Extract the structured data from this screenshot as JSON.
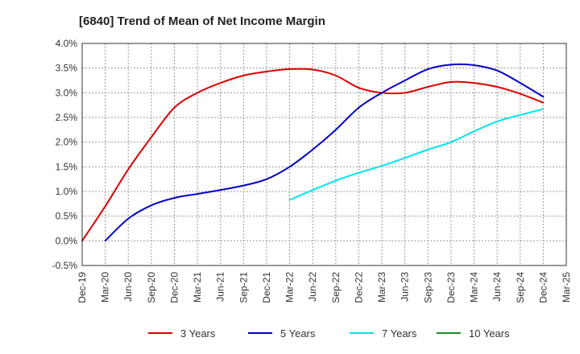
{
  "chart_data": {
    "type": "line",
    "title": "[6840]  Trend of Mean of Net Income Margin",
    "xlabel": "",
    "ylabel": "",
    "x_categories": [
      "Dec-19",
      "Mar-20",
      "Jun-20",
      "Sep-20",
      "Dec-20",
      "Mar-21",
      "Jun-21",
      "Sep-21",
      "Dec-21",
      "Mar-22",
      "Jun-22",
      "Sep-22",
      "Dec-22",
      "Mar-23",
      "Jun-23",
      "Sep-23",
      "Dec-23",
      "Mar-24",
      "Jun-24",
      "Sep-24",
      "Dec-24",
      "Mar-25"
    ],
    "y_ticks": [
      {
        "value": 4.0,
        "label": "4.0%"
      },
      {
        "value": 3.5,
        "label": "3.5%"
      },
      {
        "value": 3.0,
        "label": "3.0%"
      },
      {
        "value": 2.5,
        "label": "2.5%"
      },
      {
        "value": 2.0,
        "label": "2.0%"
      },
      {
        "value": 1.5,
        "label": "1.5%"
      },
      {
        "value": 1.0,
        "label": "1.0%"
      },
      {
        "value": 0.5,
        "label": "0.5%"
      },
      {
        "value": 0.0,
        "label": "0.0%"
      },
      {
        "value": -0.5,
        "label": "-0.5%"
      }
    ],
    "ylim": [
      -0.5,
      4.0
    ],
    "grid": true,
    "legend_position": "bottom",
    "series": [
      {
        "name": "3 Years",
        "color": "#dd0000",
        "values": [
          0.0,
          0.7,
          1.45,
          2.1,
          2.7,
          3.0,
          3.2,
          3.35,
          3.43,
          3.48,
          3.47,
          3.35,
          3.1,
          3.0,
          3.0,
          3.12,
          3.22,
          3.2,
          3.12,
          2.98,
          2.8,
          null
        ]
      },
      {
        "name": "5 Years",
        "color": "#0000cc",
        "values": [
          null,
          0.0,
          0.45,
          0.72,
          0.87,
          0.95,
          1.03,
          1.12,
          1.25,
          1.5,
          1.85,
          2.25,
          2.7,
          3.0,
          3.25,
          3.48,
          3.57,
          3.56,
          3.45,
          3.2,
          2.92,
          null
        ]
      },
      {
        "name": "7 Years",
        "color": "#00e5ee",
        "values": [
          null,
          null,
          null,
          null,
          null,
          null,
          null,
          null,
          null,
          0.83,
          1.03,
          1.22,
          1.38,
          1.52,
          1.68,
          1.85,
          2.0,
          2.22,
          2.42,
          2.55,
          2.67,
          null
        ]
      },
      {
        "name": "10 Years",
        "color": "#228b22",
        "values": [
          null,
          null,
          null,
          null,
          null,
          null,
          null,
          null,
          null,
          null,
          null,
          null,
          null,
          null,
          null,
          null,
          null,
          null,
          null,
          null,
          null,
          null
        ]
      }
    ]
  }
}
